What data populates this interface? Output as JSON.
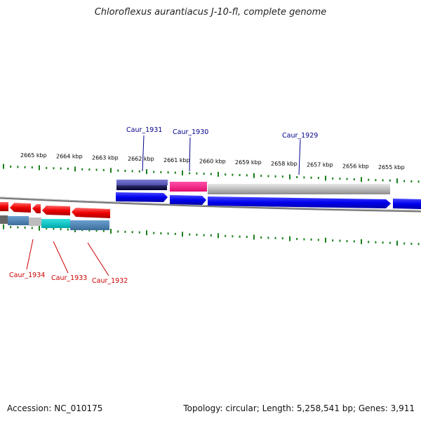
{
  "title": "Chloroflexus aurantiacus J-10-fl, complete genome",
  "footer": {
    "accession": "Accession: NC_010175",
    "summary": "Topology: circular; Length: 5,258,541 bp; Genes: 3,911"
  },
  "scale_labels": [
    "2665 kbp",
    "2664 kbp",
    "2663 kbp",
    "2662 kbp",
    "2661 kbp",
    "2660 kbp",
    "2659 kbp",
    "2658 kbp",
    "2657 kbp",
    "2656 kbp",
    "2655 kbp"
  ],
  "forward_genes": [
    {
      "name": "Caur_1931",
      "color": "#00008b"
    },
    {
      "name": "Caur_1930",
      "color": "#ff1493"
    },
    {
      "name": "Caur_1929",
      "color": "#0000ff"
    }
  ],
  "reverse_genes": [
    {
      "name": "Caur_1934",
      "color": "#ff0000"
    },
    {
      "name": "Caur_1933",
      "color": "#00cccc"
    },
    {
      "name": "Caur_1932",
      "color": "#4682b4"
    }
  ],
  "colors": {
    "forward_label": "#00008b",
    "reverse_label": "#cc0000",
    "ticks": "#1a7f1a",
    "backbone": "#777777"
  }
}
